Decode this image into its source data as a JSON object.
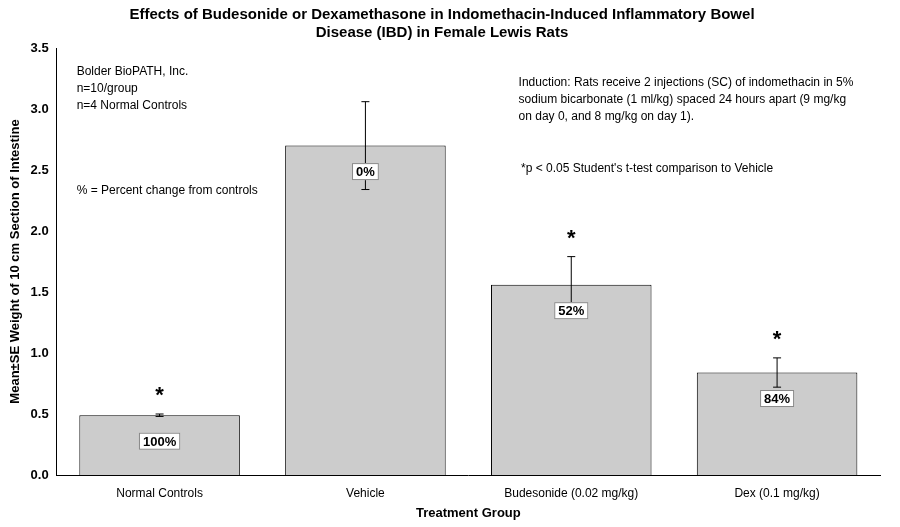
{
  "chart_data": {
    "type": "bar",
    "title": [
      "Effects of Budesonide or Dexamethasone in Indomethacin-Induced Inflammatory Bowel",
      "Disease (IBD) in Female Lewis Rats"
    ],
    "x_label": "Treatment Group",
    "y_label": "Mean±SE Weight of 10 cm Section of Intestine",
    "categories": [
      "Normal Controls",
      "Vehicle",
      "Budesonide (0.02 mg/kg)",
      "Dex (0.1 mg/kg)"
    ],
    "values": [
      0.49,
      2.7,
      1.56,
      0.84
    ],
    "errors": [
      0.01,
      0.36,
      0.23,
      0.12
    ],
    "percent_change_labels": [
      "100%",
      "0%",
      "52%",
      "84%"
    ],
    "significance": [
      "*",
      null,
      "*",
      "*"
    ],
    "color": "#cccccc",
    "ylim": [
      0,
      3.5
    ],
    "yticks": [
      {
        "value": 0,
        "label": "0.0"
      },
      0.5,
      {
        "value": 1,
        "label": "1.0"
      },
      1.5,
      {
        "value": 2,
        "label": "2.0"
      },
      2.5,
      {
        "value": 3,
        "label": "3.0"
      },
      3.5
    ],
    "grid": false,
    "annotations": [
      [
        "Bolder BioPATH, Inc.",
        "n=10/group",
        "n=4 Normal Controls"
      ],
      [
        "% = Percent change from controls"
      ],
      [
        "Induction: Rats receive 2 injections (SC) of indomethacin in 5%",
        "sodium bicarbonate (1 ml/kg) spaced 24 hours apart (9 mg/kg",
        "on day 0, and 8 mg/kg on day 1)."
      ],
      [
        "*p < 0.05 Student's t-test comparison to Vehicle"
      ]
    ]
  }
}
